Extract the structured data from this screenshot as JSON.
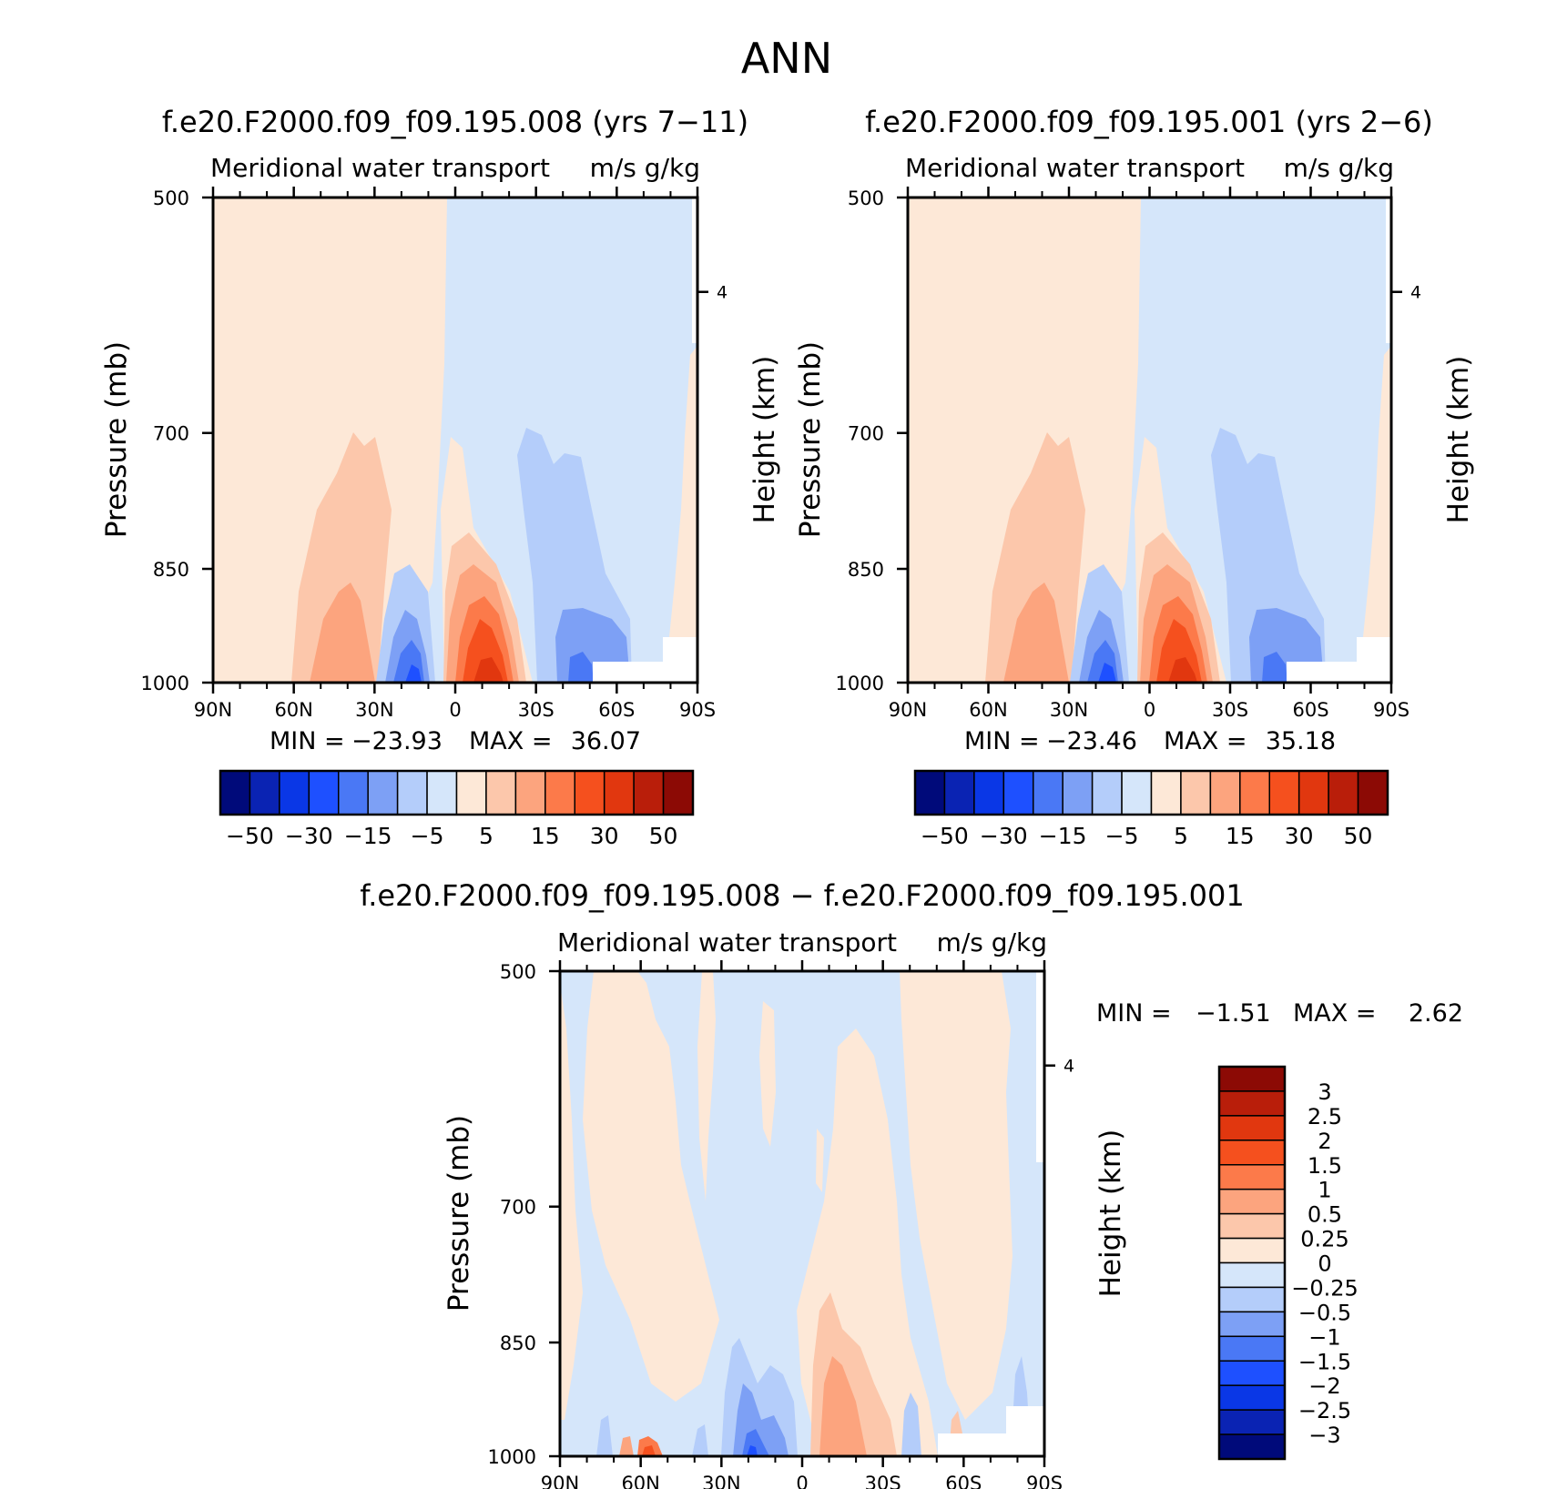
{
  "figure": {
    "title": "ANN"
  },
  "chart_data": [
    {
      "type": "heatmap",
      "panel": "left",
      "title": "f.e20.F2000.f09_f09.195.008 (yrs 7−11)",
      "subtitle_left": "Meridional water transport",
      "subtitle_right": "m/s g/kg",
      "ylabel": "Pressure (mb)",
      "ylabel_right": "Height (km)",
      "x_ticks": [
        "90N",
        "60N",
        "30N",
        "0",
        "30S",
        "60S",
        "90S"
      ],
      "y_ticks": [
        "500",
        "700",
        "850",
        "1000"
      ],
      "y_ticks_right": [
        "4"
      ],
      "xlim": [
        90,
        -90
      ],
      "ylim": [
        1000,
        500
      ],
      "min_label": "MIN =",
      "min_value": "−23.93",
      "max_label": "MAX =",
      "max_value": "36.07",
      "colorbar_labels": [
        "−50",
        "−30",
        "−15",
        "−5",
        "5",
        "15",
        "30",
        "50"
      ],
      "grid": false
    },
    {
      "type": "heatmap",
      "panel": "right",
      "title": "f.e20.F2000.f09_f09.195.001 (yrs 2−6)",
      "subtitle_left": "Meridional water transport",
      "subtitle_right": "m/s g/kg",
      "ylabel": "Pressure (mb)",
      "ylabel_right": "Height (km)",
      "x_ticks": [
        "90N",
        "60N",
        "30N",
        "0",
        "30S",
        "60S",
        "90S"
      ],
      "y_ticks": [
        "500",
        "700",
        "850",
        "1000"
      ],
      "y_ticks_right": [
        "4"
      ],
      "xlim": [
        90,
        -90
      ],
      "ylim": [
        1000,
        500
      ],
      "min_label": "MIN =",
      "min_value": "−23.46",
      "max_label": "MAX =",
      "max_value": "35.18",
      "colorbar_labels": [
        "−50",
        "−30",
        "−15",
        "−5",
        "5",
        "15",
        "30",
        "50"
      ],
      "grid": false
    },
    {
      "type": "heatmap",
      "panel": "difference",
      "title": "f.e20.F2000.f09_f09.195.008 − f.e20.F2000.f09_f09.195.001",
      "subtitle_left": "Meridional water transport",
      "subtitle_right": "m/s g/kg",
      "ylabel": "Pressure (mb)",
      "ylabel_right": "Height (km)",
      "x_ticks": [
        "90N",
        "60N",
        "30N",
        "0",
        "30S",
        "60S",
        "90S"
      ],
      "y_ticks": [
        "500",
        "700",
        "850",
        "1000"
      ],
      "y_ticks_right": [
        "4"
      ],
      "xlim": [
        90,
        -90
      ],
      "ylim": [
        1000,
        500
      ],
      "min_label": "MIN =",
      "min_value": "−1.51",
      "max_label": "MAX =",
      "max_value": "2.62",
      "colorbar_labels": [
        "3",
        "2.5",
        "2",
        "1.5",
        "1",
        "0.5",
        "0.25",
        "0",
        "−0.25",
        "−0.5",
        "−1",
        "−1.5",
        "−2",
        "−2.5",
        "−3"
      ],
      "grid": false
    }
  ],
  "colors": {
    "palette": [
      "#000a7a",
      "#0a23b3",
      "#0a37e6",
      "#1e50ff",
      "#4a78f5",
      "#7da0f5",
      "#b4cdfa",
      "#d5e6fa",
      "#fde8d7",
      "#fcc7ab",
      "#fca47e",
      "#fc7a4a",
      "#f5501e",
      "#e1370f",
      "#b91e0a",
      "#8c0a05"
    ]
  }
}
